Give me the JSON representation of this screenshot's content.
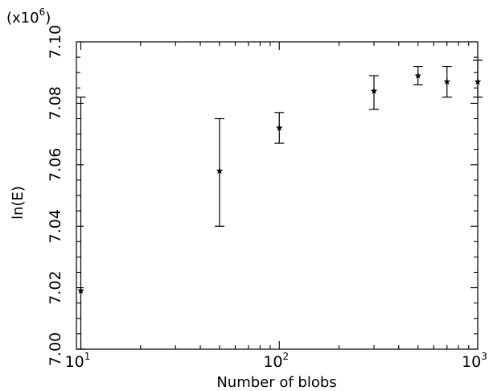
{
  "chart_data": {
    "type": "scatter",
    "multiplier_label": "(x10",
    "multiplier_exponent": "6",
    "multiplier_close": ")",
    "xlabel": "Number of blobs",
    "ylabel": "ln(E)",
    "x_scale": "log",
    "xlim": [
      9.5,
      1000
    ],
    "ylim": [
      7.0,
      7.1
    ],
    "x_ticks": [
      10,
      100,
      1000
    ],
    "x_tick_base": "10",
    "x_tick_exponents": [
      "1",
      "2",
      "3"
    ],
    "y_ticks": [
      7.0,
      7.02,
      7.04,
      7.06,
      7.08,
      7.1
    ],
    "y_tick_labels": [
      "7.00",
      "7.02",
      "7.04",
      "7.06",
      "7.08",
      "7.10"
    ],
    "grid": false,
    "marker": "star",
    "points": [
      {
        "x": 10,
        "y": 7.019,
        "y_low": 7.0,
        "y_high": 7.082
      },
      {
        "x": 50,
        "y": 7.058,
        "y_low": 7.04,
        "y_high": 7.075
      },
      {
        "x": 100,
        "y": 7.072,
        "y_low": 7.067,
        "y_high": 7.077
      },
      {
        "x": 300,
        "y": 7.084,
        "y_low": 7.078,
        "y_high": 7.089
      },
      {
        "x": 500,
        "y": 7.089,
        "y_low": 7.086,
        "y_high": 7.092
      },
      {
        "x": 700,
        "y": 7.087,
        "y_low": 7.082,
        "y_high": 7.092
      },
      {
        "x": 1000,
        "y": 7.087,
        "y_low": 7.082,
        "y_high": 7.094
      }
    ]
  }
}
